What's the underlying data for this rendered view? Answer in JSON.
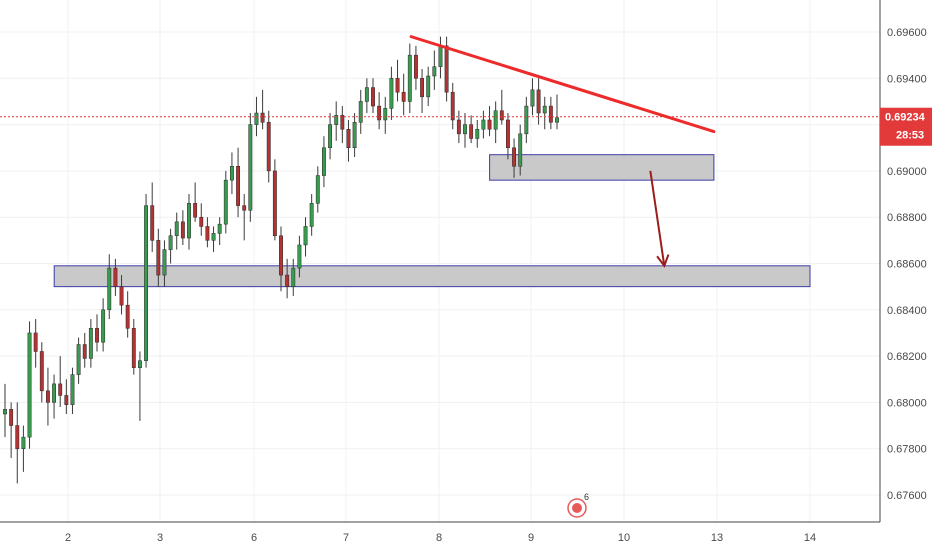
{
  "chart_data": {
    "type": "candlestick",
    "price_axis": {
      "min": 0.675,
      "max": 0.6975,
      "ticks": [
        "0.69600",
        "0.69400",
        "0.69200",
        "0.69000",
        "0.68800",
        "0.68600",
        "0.68400",
        "0.68200",
        "0.68000",
        "0.67800",
        "0.67600"
      ]
    },
    "time_axis": {
      "ticks": [
        "2",
        "3",
        "6",
        "7",
        "8",
        "9",
        "10",
        "13",
        "14"
      ]
    },
    "current_price": {
      "value": 0.69234,
      "label": "0.69234",
      "countdown": "28:53"
    },
    "colors": {
      "up": "#3a9a50",
      "down": "#b03434",
      "trendline": "#ee2b2b",
      "arrow": "#9c1c1c",
      "zone_fill": "#c9c9c9",
      "zone_border": "#3b3ba8",
      "price_line": "#e23a3a"
    },
    "trendline": {
      "from": {
        "x": 7.7,
        "y": 0.6958
      },
      "to": {
        "x": 12.9,
        "y": 0.6917
      }
    },
    "arrow": {
      "from": {
        "x": 10.85,
        "y": 0.69
      },
      "to": {
        "x": 11.3,
        "y": 0.6859
      }
    },
    "zones": [
      {
        "name": "upper-support-zone",
        "x1": 8.55,
        "x2": 12.9,
        "y_top": 0.6907,
        "y_bottom": 0.6896
      },
      {
        "name": "lower-support-zone",
        "x1": 1.85,
        "x2": 14.0,
        "y_top": 0.6859,
        "y_bottom": 0.685
      }
    ],
    "candles_ohlc": [
      [
        0.6795,
        0.6808,
        0.6785,
        0.6797
      ],
      [
        0.6797,
        0.68,
        0.6776,
        0.679
      ],
      [
        0.679,
        0.68,
        0.6765,
        0.678
      ],
      [
        0.678,
        0.679,
        0.677,
        0.6785
      ],
      [
        0.6785,
        0.6835,
        0.678,
        0.683
      ],
      [
        0.683,
        0.6836,
        0.6815,
        0.6822
      ],
      [
        0.6822,
        0.6826,
        0.68,
        0.6805
      ],
      [
        0.6805,
        0.6815,
        0.679,
        0.68
      ],
      [
        0.68,
        0.6812,
        0.6793,
        0.6808
      ],
      [
        0.6808,
        0.682,
        0.6798,
        0.6803
      ],
      [
        0.6803,
        0.681,
        0.6795,
        0.6799
      ],
      [
        0.6799,
        0.6815,
        0.6795,
        0.6812
      ],
      [
        0.6812,
        0.6828,
        0.6808,
        0.6825
      ],
      [
        0.6825,
        0.683,
        0.6815,
        0.6819
      ],
      [
        0.6819,
        0.6836,
        0.6815,
        0.6832
      ],
      [
        0.6832,
        0.6838,
        0.6822,
        0.6826
      ],
      [
        0.6826,
        0.6845,
        0.6822,
        0.684
      ],
      [
        0.684,
        0.6864,
        0.6836,
        0.6858
      ],
      [
        0.6858,
        0.6862,
        0.6846,
        0.685
      ],
      [
        0.685,
        0.6855,
        0.6838,
        0.6842
      ],
      [
        0.6842,
        0.6848,
        0.6828,
        0.6832
      ],
      [
        0.6832,
        0.6836,
        0.6812,
        0.6815
      ],
      [
        0.6815,
        0.6822,
        0.6792,
        0.6818
      ],
      [
        0.6818,
        0.689,
        0.6815,
        0.6885
      ],
      [
        0.6885,
        0.6895,
        0.6865,
        0.687
      ],
      [
        0.687,
        0.6875,
        0.685,
        0.6855
      ],
      [
        0.6855,
        0.687,
        0.685,
        0.6866
      ],
      [
        0.6866,
        0.6875,
        0.686,
        0.6872
      ],
      [
        0.6872,
        0.6882,
        0.6866,
        0.6878
      ],
      [
        0.6878,
        0.6883,
        0.6868,
        0.6871
      ],
      [
        0.6871,
        0.689,
        0.6866,
        0.6886
      ],
      [
        0.6886,
        0.6895,
        0.6878,
        0.688
      ],
      [
        0.688,
        0.6886,
        0.6872,
        0.6876
      ],
      [
        0.6876,
        0.688,
        0.6867,
        0.687
      ],
      [
        0.687,
        0.6876,
        0.6865,
        0.6873
      ],
      [
        0.6873,
        0.688,
        0.6868,
        0.6877
      ],
      [
        0.6877,
        0.69,
        0.6873,
        0.6896
      ],
      [
        0.6896,
        0.6908,
        0.689,
        0.6902
      ],
      [
        0.6902,
        0.691,
        0.688,
        0.6885
      ],
      [
        0.6885,
        0.689,
        0.687,
        0.6883
      ],
      [
        0.6883,
        0.6925,
        0.6878,
        0.692
      ],
      [
        0.692,
        0.6932,
        0.6915,
        0.6925
      ],
      [
        0.6925,
        0.6935,
        0.6918,
        0.6921
      ],
      [
        0.6921,
        0.6926,
        0.6895,
        0.69
      ],
      [
        0.69,
        0.6905,
        0.687,
        0.6872
      ],
      [
        0.6872,
        0.6876,
        0.6848,
        0.6855
      ],
      [
        0.6855,
        0.6862,
        0.6845,
        0.685
      ],
      [
        0.685,
        0.6862,
        0.6846,
        0.6858
      ],
      [
        0.6858,
        0.6872,
        0.6854,
        0.6868
      ],
      [
        0.6868,
        0.688,
        0.6863,
        0.6876
      ],
      [
        0.6876,
        0.689,
        0.6872,
        0.6886
      ],
      [
        0.6886,
        0.6902,
        0.6882,
        0.6898
      ],
      [
        0.6898,
        0.6915,
        0.6893,
        0.691
      ],
      [
        0.691,
        0.6925,
        0.6905,
        0.692
      ],
      [
        0.692,
        0.693,
        0.6913,
        0.6924
      ],
      [
        0.6924,
        0.6928,
        0.6912,
        0.6918
      ],
      [
        0.6918,
        0.6922,
        0.6904,
        0.691
      ],
      [
        0.691,
        0.6925,
        0.6906,
        0.6921
      ],
      [
        0.6921,
        0.6935,
        0.6916,
        0.693
      ],
      [
        0.693,
        0.694,
        0.6925,
        0.6936
      ],
      [
        0.6936,
        0.694,
        0.6925,
        0.6928
      ],
      [
        0.6928,
        0.6934,
        0.6918,
        0.6922
      ],
      [
        0.6922,
        0.6932,
        0.6916,
        0.6927
      ],
      [
        0.6927,
        0.6945,
        0.6922,
        0.694
      ],
      [
        0.694,
        0.6948,
        0.693,
        0.6934
      ],
      [
        0.6934,
        0.6942,
        0.6924,
        0.693
      ],
      [
        0.693,
        0.6955,
        0.6925,
        0.695
      ],
      [
        0.695,
        0.6954,
        0.6935,
        0.694
      ],
      [
        0.694,
        0.6944,
        0.6925,
        0.6932
      ],
      [
        0.6932,
        0.6945,
        0.6928,
        0.6941
      ],
      [
        0.6941,
        0.6952,
        0.6935,
        0.6945
      ],
      [
        0.6945,
        0.6958,
        0.694,
        0.6954
      ],
      [
        0.6954,
        0.6958,
        0.693,
        0.6934
      ],
      [
        0.6934,
        0.6938,
        0.6918,
        0.6922
      ],
      [
        0.6922,
        0.6926,
        0.6912,
        0.6916
      ],
      [
        0.6916,
        0.6925,
        0.691,
        0.692
      ],
      [
        0.692,
        0.6924,
        0.6912,
        0.6914
      ],
      [
        0.6914,
        0.6922,
        0.691,
        0.6918
      ],
      [
        0.6918,
        0.6926,
        0.6914,
        0.6922
      ],
      [
        0.6922,
        0.6928,
        0.6915,
        0.6918
      ],
      [
        0.6918,
        0.693,
        0.6912,
        0.6926
      ],
      [
        0.6926,
        0.6935,
        0.692,
        0.6922
      ],
      [
        0.6922,
        0.6925,
        0.6905,
        0.691
      ],
      [
        0.691,
        0.6914,
        0.6897,
        0.6902
      ],
      [
        0.6902,
        0.692,
        0.6898,
        0.6916
      ],
      [
        0.6916,
        0.6932,
        0.6912,
        0.6928
      ],
      [
        0.6928,
        0.694,
        0.6924,
        0.6935
      ],
      [
        0.6935,
        0.694,
        0.692,
        0.6925
      ],
      [
        0.6925,
        0.6932,
        0.6918,
        0.6928
      ],
      [
        0.6928,
        0.6932,
        0.6918,
        0.6921
      ],
      [
        0.6921,
        0.6933,
        0.6918,
        0.6923
      ]
    ],
    "badge": {
      "count": "6"
    }
  }
}
